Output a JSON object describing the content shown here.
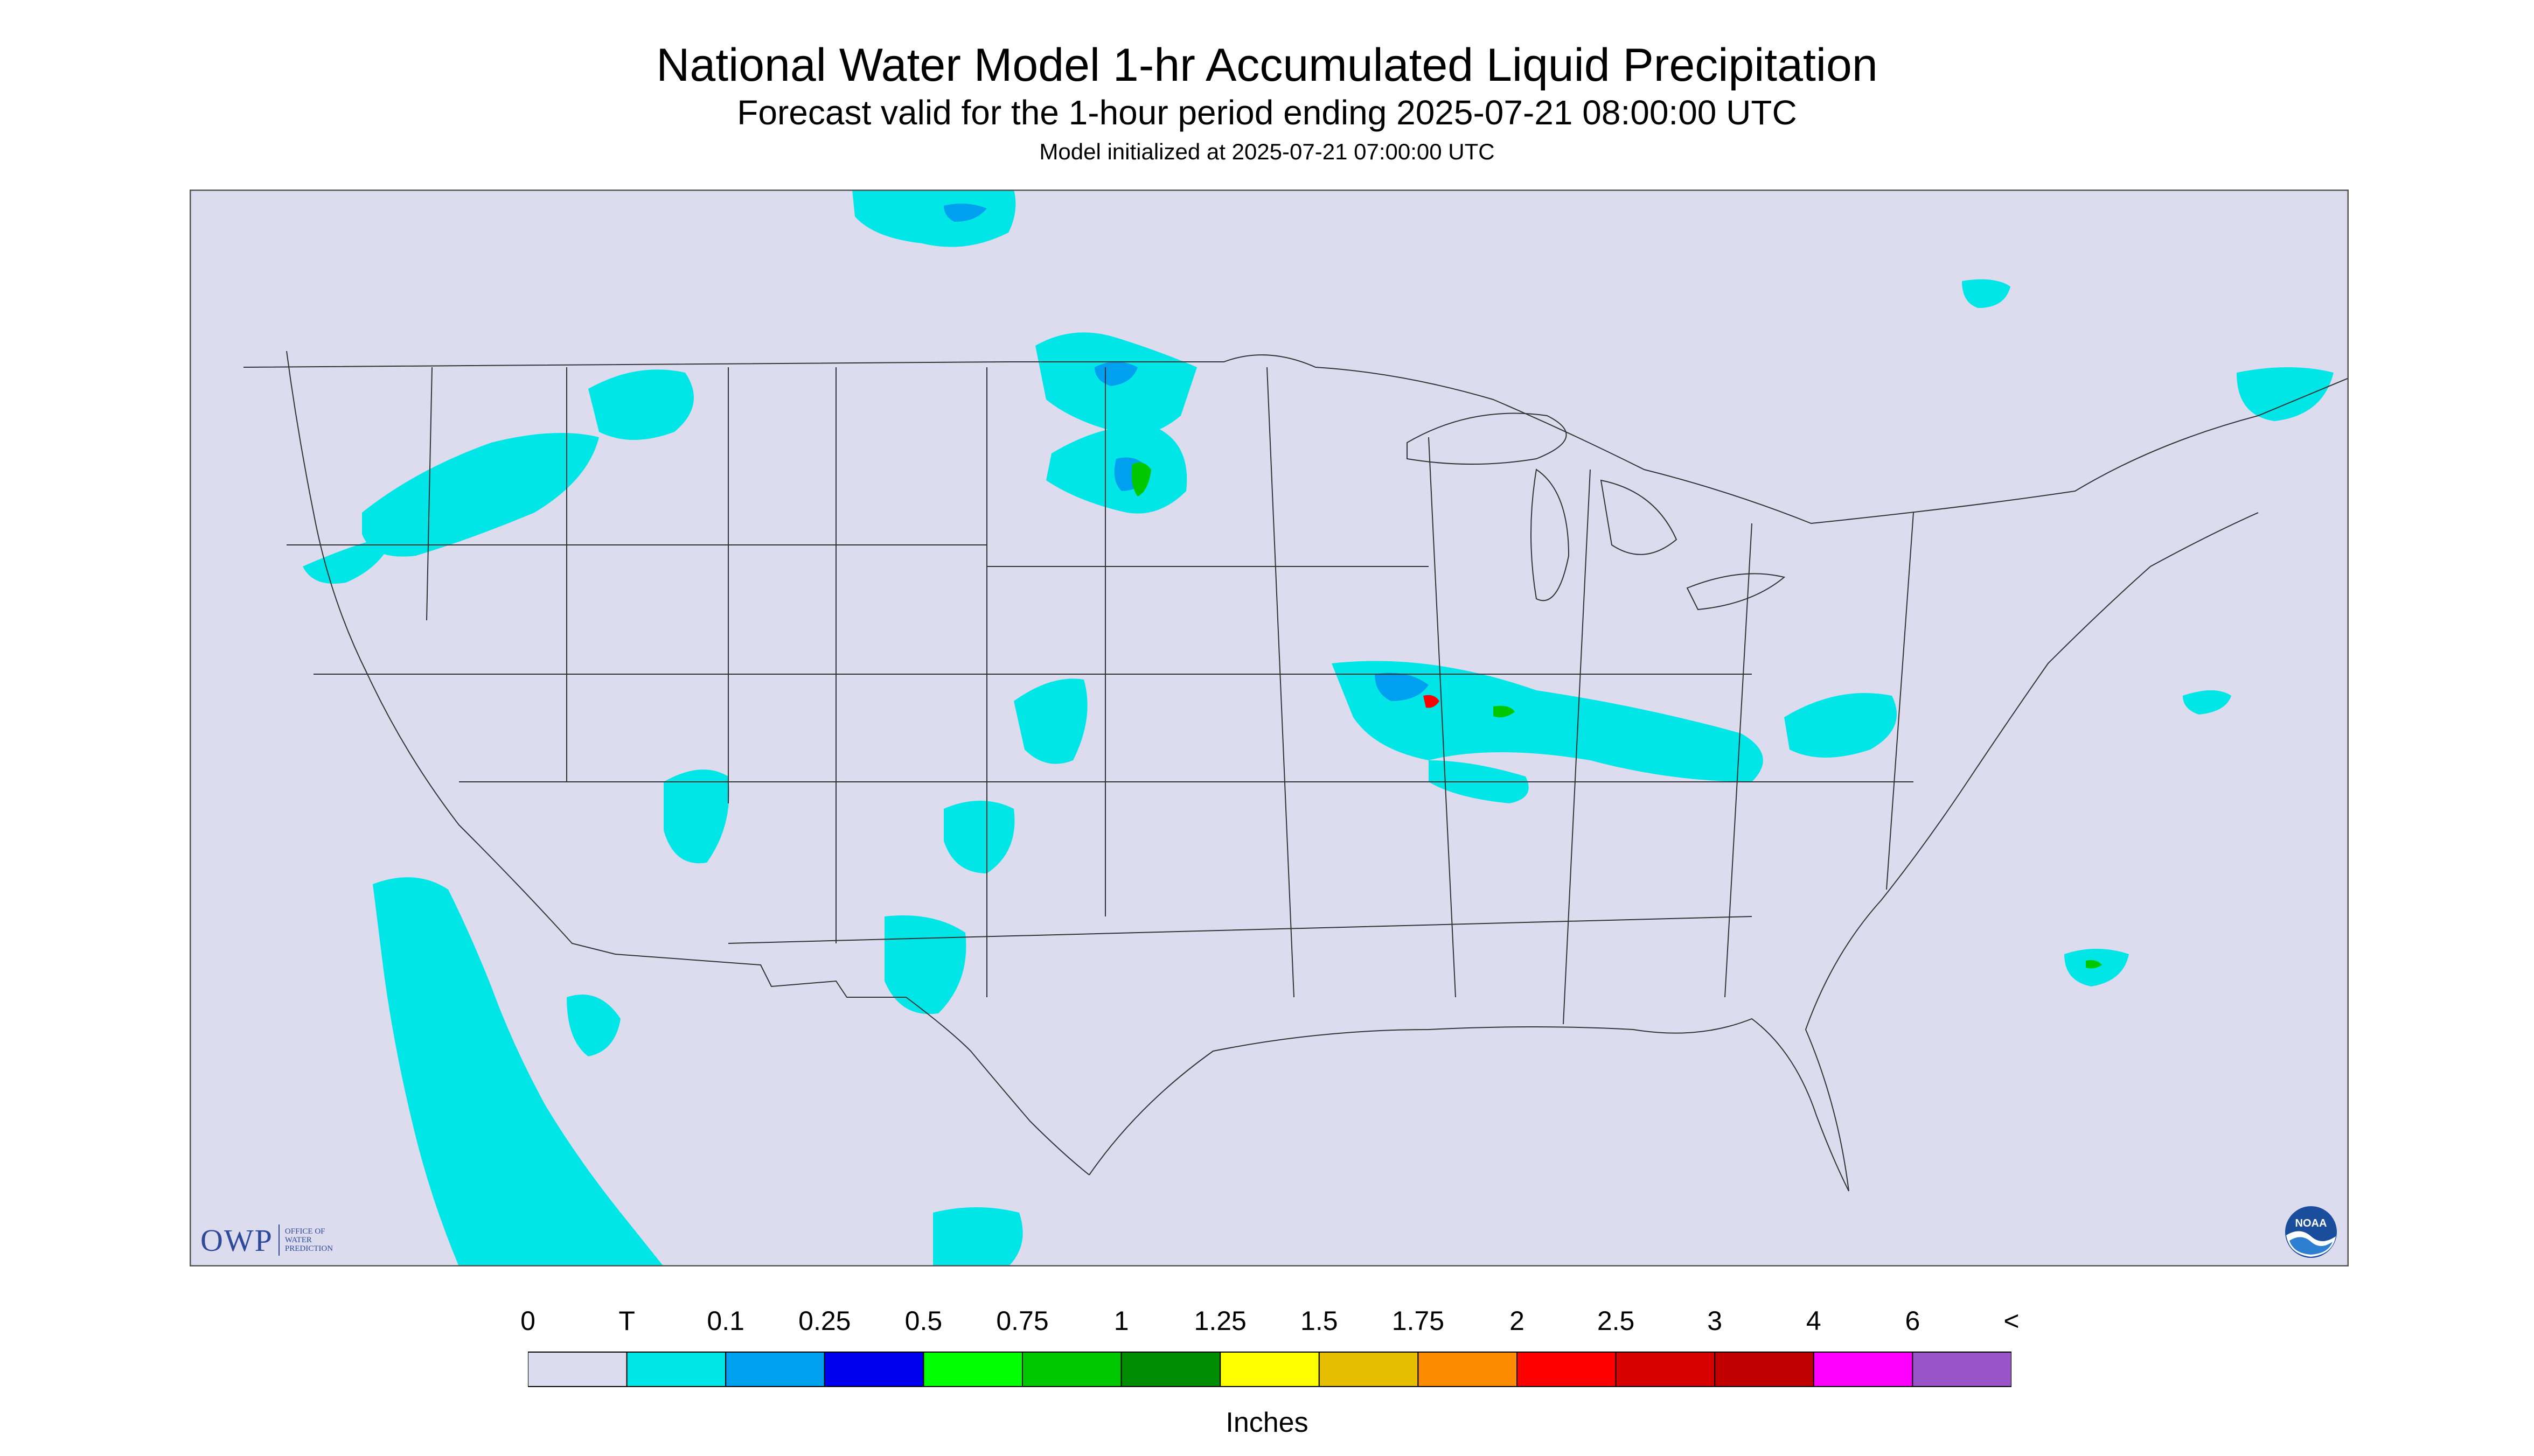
{
  "header": {
    "title": "National Water Model 1-hr Accumulated Liquid Precipitation",
    "subtitle": "Forecast valid for the 1-hour period ending 2025-07-21 08:00:00 UTC",
    "init": "Model initialized at 2025-07-21 07:00:00 UTC"
  },
  "logos": {
    "owp_short": "OWP",
    "owp_line1": "OFFICE OF",
    "owp_line2": "WATER",
    "owp_line3": "PREDICTION",
    "noaa": "NOAA"
  },
  "legend": {
    "units": "Inches",
    "labels": [
      "0",
      "T",
      "0.1",
      "0.25",
      "0.5",
      "0.75",
      "1",
      "1.25",
      "1.5",
      "1.75",
      "2",
      "2.5",
      "3",
      "4",
      "6",
      "<"
    ],
    "colors": [
      "#dcdcee",
      "#00e6e6",
      "#00a0f0",
      "#0000ee",
      "#00ff00",
      "#00c800",
      "#008c00",
      "#ffff00",
      "#e6be00",
      "#ff8c00",
      "#ff0000",
      "#d70000",
      "#c00000",
      "#ff00ff",
      "#9955c9"
    ]
  },
  "colors": {
    "background": "#dcdcee",
    "trace": "#00e6e6",
    "light": "#00a0f0",
    "moderate": "#0000ee",
    "heavy": "#00c800"
  }
}
